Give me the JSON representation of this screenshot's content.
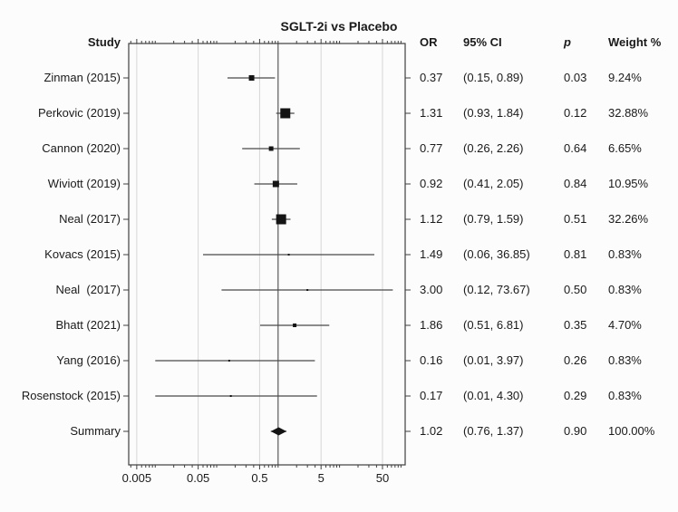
{
  "chart_data": {
    "type": "forest",
    "title": "SGLT-2i vs Placebo",
    "columns": {
      "study": "Study",
      "or": "OR",
      "ci": "95% CI",
      "p": "p",
      "weight": "Weight %"
    },
    "x_axis": {
      "scale": "log",
      "range": [
        0.0037,
        117
      ],
      "ticks": [
        0.005,
        0.05,
        0.5,
        5,
        50
      ],
      "tick_labels": [
        "0.005",
        "0.05",
        "0.5",
        "5",
        "50"
      ],
      "reference_line": 1
    },
    "rows": [
      {
        "study": "Zinman (2015)",
        "or": 0.37,
        "ci_lo": 0.15,
        "ci_hi": 0.89,
        "or_text": "0.37",
        "ci_text": "(0.15, 0.89)",
        "p_text": "0.03",
        "weight": 9.24,
        "weight_text": "9.24%",
        "is_summary": false
      },
      {
        "study": "Perkovic (2019)",
        "or": 1.31,
        "ci_lo": 0.93,
        "ci_hi": 1.84,
        "or_text": "1.31",
        "ci_text": "(0.93, 1.84)",
        "p_text": "0.12",
        "weight": 32.88,
        "weight_text": "32.88%",
        "is_summary": false
      },
      {
        "study": "Cannon (2020)",
        "or": 0.77,
        "ci_lo": 0.26,
        "ci_hi": 2.26,
        "or_text": "0.77",
        "ci_text": "(0.26, 2.26)",
        "p_text": "0.64",
        "weight": 6.65,
        "weight_text": "6.65%",
        "is_summary": false
      },
      {
        "study": "Wiviott (2019)",
        "or": 0.92,
        "ci_lo": 0.41,
        "ci_hi": 2.05,
        "or_text": "0.92",
        "ci_text": "(0.41, 2.05)",
        "p_text": "0.84",
        "weight": 10.95,
        "weight_text": "10.95%",
        "is_summary": false
      },
      {
        "study": "Neal (2017)",
        "or": 1.12,
        "ci_lo": 0.79,
        "ci_hi": 1.59,
        "or_text": "1.12",
        "ci_text": "(0.79, 1.59)",
        "p_text": "0.51",
        "weight": 32.26,
        "weight_text": "32.26%",
        "is_summary": false
      },
      {
        "study": "Kovacs (2015)",
        "or": 1.49,
        "ci_lo": 0.06,
        "ci_hi": 36.85,
        "or_text": "1.49",
        "ci_text": "(0.06, 36.85)",
        "p_text": "0.81",
        "weight": 0.83,
        "weight_text": "0.83%",
        "is_summary": false
      },
      {
        "study": "Neal  (2017)",
        "or": 3.0,
        "ci_lo": 0.12,
        "ci_hi": 73.67,
        "or_text": "3.00",
        "ci_text": "(0.12, 73.67)",
        "p_text": "0.50",
        "weight": 0.83,
        "weight_text": "0.83%",
        "is_summary": false
      },
      {
        "study": "Bhatt (2021)",
        "or": 1.86,
        "ci_lo": 0.51,
        "ci_hi": 6.81,
        "or_text": "1.86",
        "ci_text": "(0.51, 6.81)",
        "p_text": "0.35",
        "weight": 4.7,
        "weight_text": "4.70%",
        "is_summary": false
      },
      {
        "study": "Yang (2016)",
        "or": 0.16,
        "ci_lo": 0.01,
        "ci_hi": 3.97,
        "or_text": "0.16",
        "ci_text": "(0.01, 3.97)",
        "p_text": "0.26",
        "weight": 0.83,
        "weight_text": "0.83%",
        "is_summary": false
      },
      {
        "study": "Rosenstock (2015)",
        "or": 0.17,
        "ci_lo": 0.01,
        "ci_hi": 4.3,
        "or_text": "0.17",
        "ci_text": "(0.01, 4.30)",
        "p_text": "0.29",
        "weight": 0.83,
        "weight_text": "0.83%",
        "is_summary": false
      },
      {
        "study": "Summary",
        "or": 1.02,
        "ci_lo": 0.76,
        "ci_hi": 1.37,
        "or_text": "1.02",
        "ci_text": "(0.76, 1.37)",
        "p_text": "0.90",
        "weight": 100.0,
        "weight_text": "100.00%",
        "is_summary": true
      }
    ]
  },
  "colors": {
    "text": "#1a1a1a",
    "box": "#3f3f3f",
    "gridline": "#d6d6d6",
    "reference_line": "#4a4a4a",
    "ci_line": "#4a4a4a",
    "marker": "#141414",
    "background": "#fcfcfc"
  }
}
